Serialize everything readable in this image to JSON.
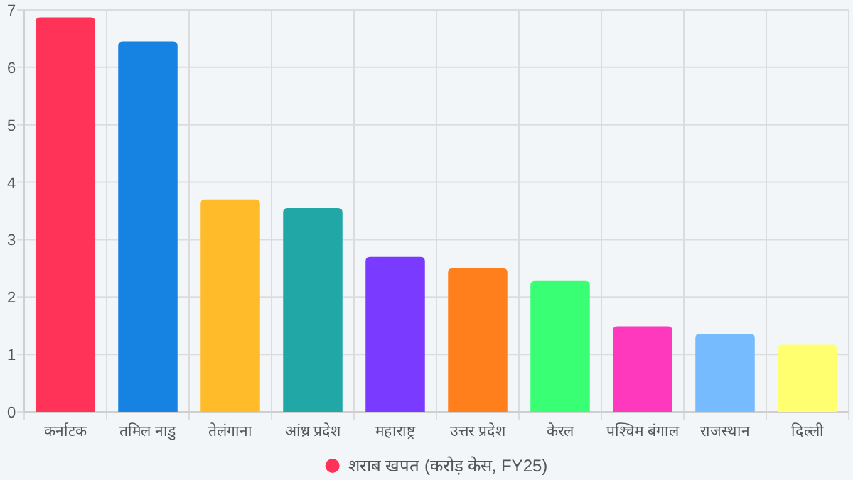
{
  "chart_data": {
    "type": "bar",
    "categories": [
      "कर्नाटक",
      "तमिल नाडु",
      "तेलंगाना",
      "आंध्र प्रदेश",
      "महाराष्ट्र",
      "उत्तर प्रदेश",
      "केरल",
      "पश्चिम बंगाल",
      "राजस्थान",
      "दिल्ली"
    ],
    "series": [
      {
        "name": "शराब खपत (करोड़ केस, FY25)",
        "color": "#ff3358",
        "colors": [
          "#ff3358",
          "#1683e2",
          "#ffbb29",
          "#22a7a7",
          "#7a3aff",
          "#ff7f1c",
          "#38ff74",
          "#ff39bd",
          "#77bbff",
          "#ffff70"
        ],
        "values": [
          6.87,
          6.45,
          3.7,
          3.55,
          2.7,
          2.5,
          2.28,
          1.49,
          1.36,
          1.17
        ]
      }
    ],
    "ylim": [
      0,
      7
    ],
    "yticks": [
      0,
      1,
      2,
      3,
      4,
      5,
      6,
      7
    ],
    "grid": true,
    "legend": "bottom"
  }
}
